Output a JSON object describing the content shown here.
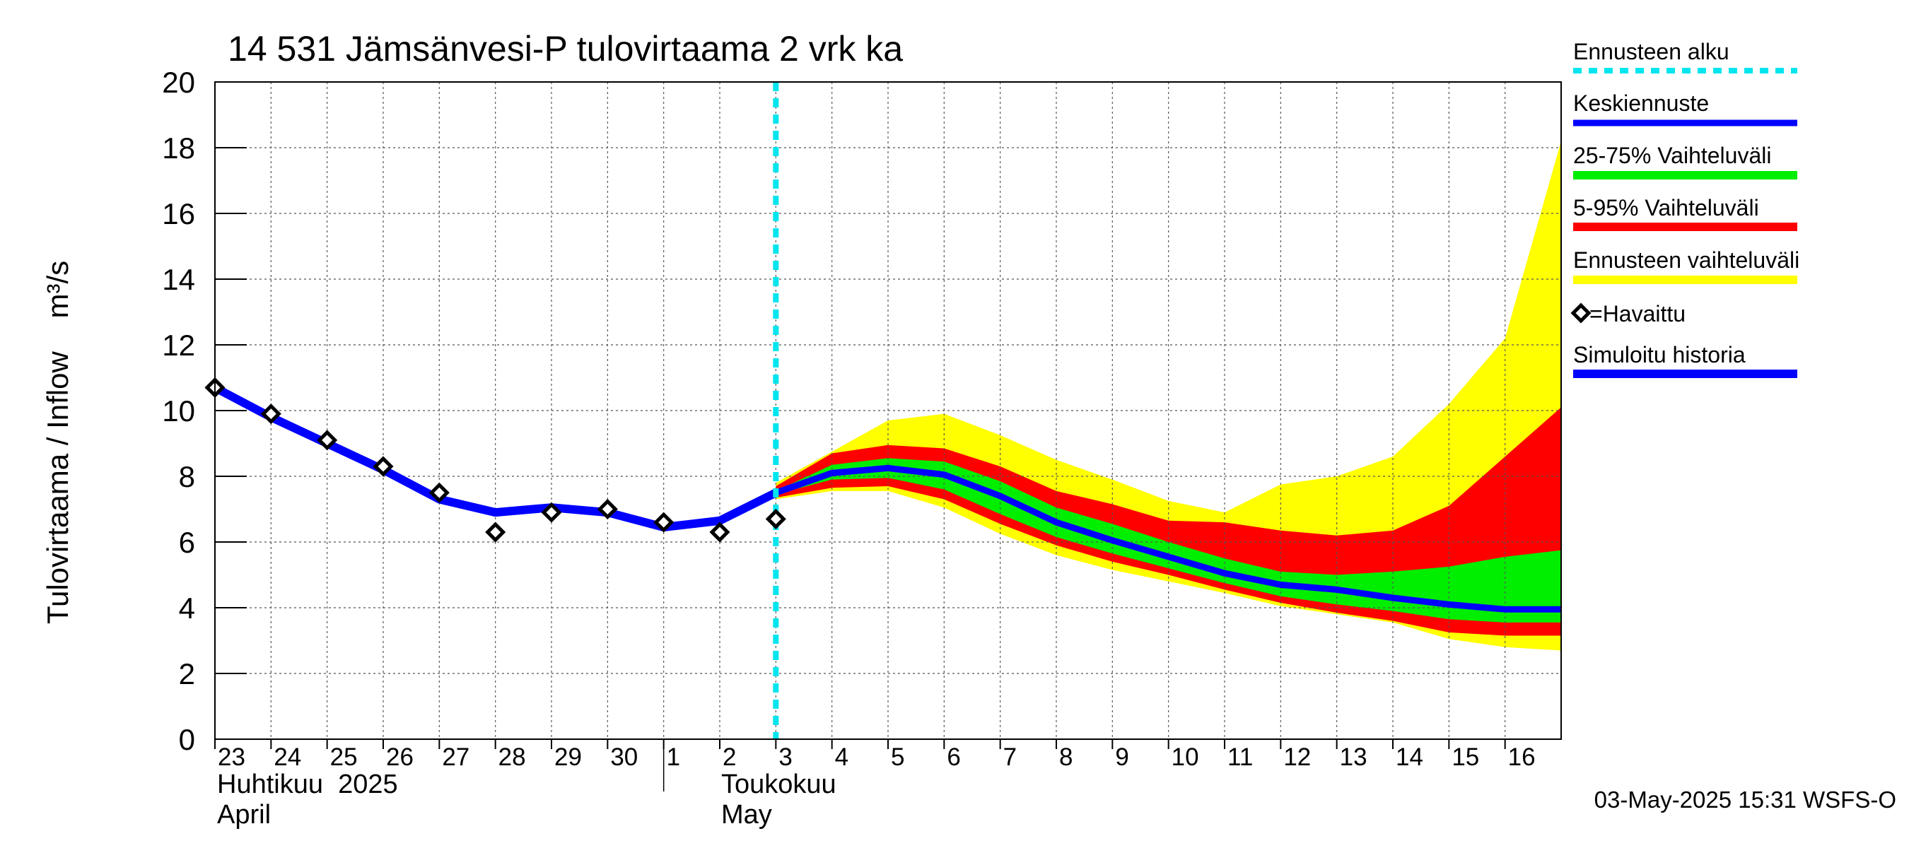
{
  "chart_data": {
    "type": "area",
    "title": "14 531 Jämsänvesi-P tulovirtaama 2 vrk ka",
    "ylabel": "Tulovirtaama / Inflow    m³/s",
    "ylim": [
      0,
      20
    ],
    "yticks": [
      "0",
      "2",
      "4",
      "6",
      "8",
      "10",
      "12",
      "14",
      "16",
      "18",
      "20"
    ],
    "xlim_day": [
      23,
      47
    ],
    "day_ticks": [
      "23",
      "24",
      "25",
      "26",
      "27",
      "28",
      "29",
      "30",
      "1",
      "2",
      "3",
      "4",
      "5",
      "6",
      "7",
      "8",
      "9",
      "10",
      "11",
      "12",
      "13",
      "14",
      "15",
      "16"
    ],
    "month_labels": {
      "april_fi": "Huhtikuu  2025",
      "april_en": "April",
      "may_fi": "Toukokuu",
      "may_en": "May"
    },
    "forecast_start_day": 33,
    "observed": {
      "name": "=Havaittu",
      "x": [
        23,
        24,
        25,
        26,
        27,
        28,
        29,
        30,
        31,
        32,
        33
      ],
      "y": [
        10.7,
        9.9,
        9.1,
        8.3,
        7.5,
        6.3,
        6.9,
        7.0,
        6.6,
        6.3,
        6.7
      ]
    },
    "simulated_history": {
      "name": "Simuloitu historia",
      "x": [
        23,
        24,
        25,
        26,
        27,
        28,
        29,
        30,
        31,
        32,
        33
      ],
      "y": [
        10.7,
        9.8,
        9.0,
        8.2,
        7.3,
        6.9,
        7.05,
        6.9,
        6.45,
        6.65,
        7.5
      ]
    },
    "forecast_x": [
      33,
      34,
      35,
      36,
      37,
      38,
      39,
      40,
      41,
      42,
      43,
      44,
      45,
      46,
      47
    ],
    "forecast_mean": {
      "name": "Keskiennuste",
      "y": [
        7.5,
        8.1,
        8.25,
        8.05,
        7.4,
        6.6,
        6.05,
        5.55,
        5.05,
        4.7,
        4.55,
        4.3,
        4.1,
        3.95,
        3.95
      ]
    },
    "band_25_75": {
      "name": "25-75% Vaihteluväli",
      "lower": [
        7.45,
        7.9,
        7.95,
        7.6,
        6.85,
        6.15,
        5.65,
        5.2,
        4.75,
        4.35,
        4.1,
        3.9,
        3.65,
        3.55,
        3.55
      ],
      "upper": [
        7.55,
        8.35,
        8.55,
        8.45,
        7.85,
        7.05,
        6.55,
        6.0,
        5.5,
        5.1,
        5.0,
        5.1,
        5.25,
        5.55,
        5.75
      ]
    },
    "band_5_95": {
      "name": "5-95% Vaihteluväli",
      "lower": [
        7.35,
        7.65,
        7.7,
        7.3,
        6.55,
        5.9,
        5.4,
        5.0,
        4.55,
        4.15,
        3.85,
        3.6,
        3.25,
        3.15,
        3.15
      ],
      "upper": [
        7.7,
        8.7,
        8.95,
        8.85,
        8.3,
        7.55,
        7.15,
        6.65,
        6.6,
        6.35,
        6.2,
        6.35,
        7.1,
        8.6,
        10.1
      ]
    },
    "band_full": {
      "name": "Ennusteen vaihteluväli",
      "lower": [
        7.3,
        7.55,
        7.55,
        7.05,
        6.25,
        5.6,
        5.15,
        4.8,
        4.45,
        4.05,
        3.8,
        3.55,
        3.05,
        2.8,
        2.7
      ],
      "upper": [
        7.8,
        8.75,
        9.7,
        9.9,
        9.25,
        8.5,
        7.9,
        7.25,
        6.9,
        7.75,
        8.0,
        8.6,
        10.2,
        12.2,
        18.2
      ]
    },
    "legend": {
      "forecast_start": "Ennusteen alku",
      "mean": "Keskiennuste",
      "band_25_75": "25-75% Vaihteluväli",
      "band_5_95": "5-95% Vaihteluväli",
      "band_full": "Ennusteen vaihteluväli",
      "observed": "=Havaittu",
      "simulated": "Simuloitu historia"
    },
    "colors": {
      "forecast_start": "#00e5ee",
      "mean": "#0000ff",
      "band_25_75": "#00ee00",
      "band_5_95": "#ff0000",
      "band_full": "#ffff00",
      "observed": "#000000",
      "simulated": "#0000ff"
    }
  },
  "timestamp": "03-May-2025 15:31 WSFS-O"
}
